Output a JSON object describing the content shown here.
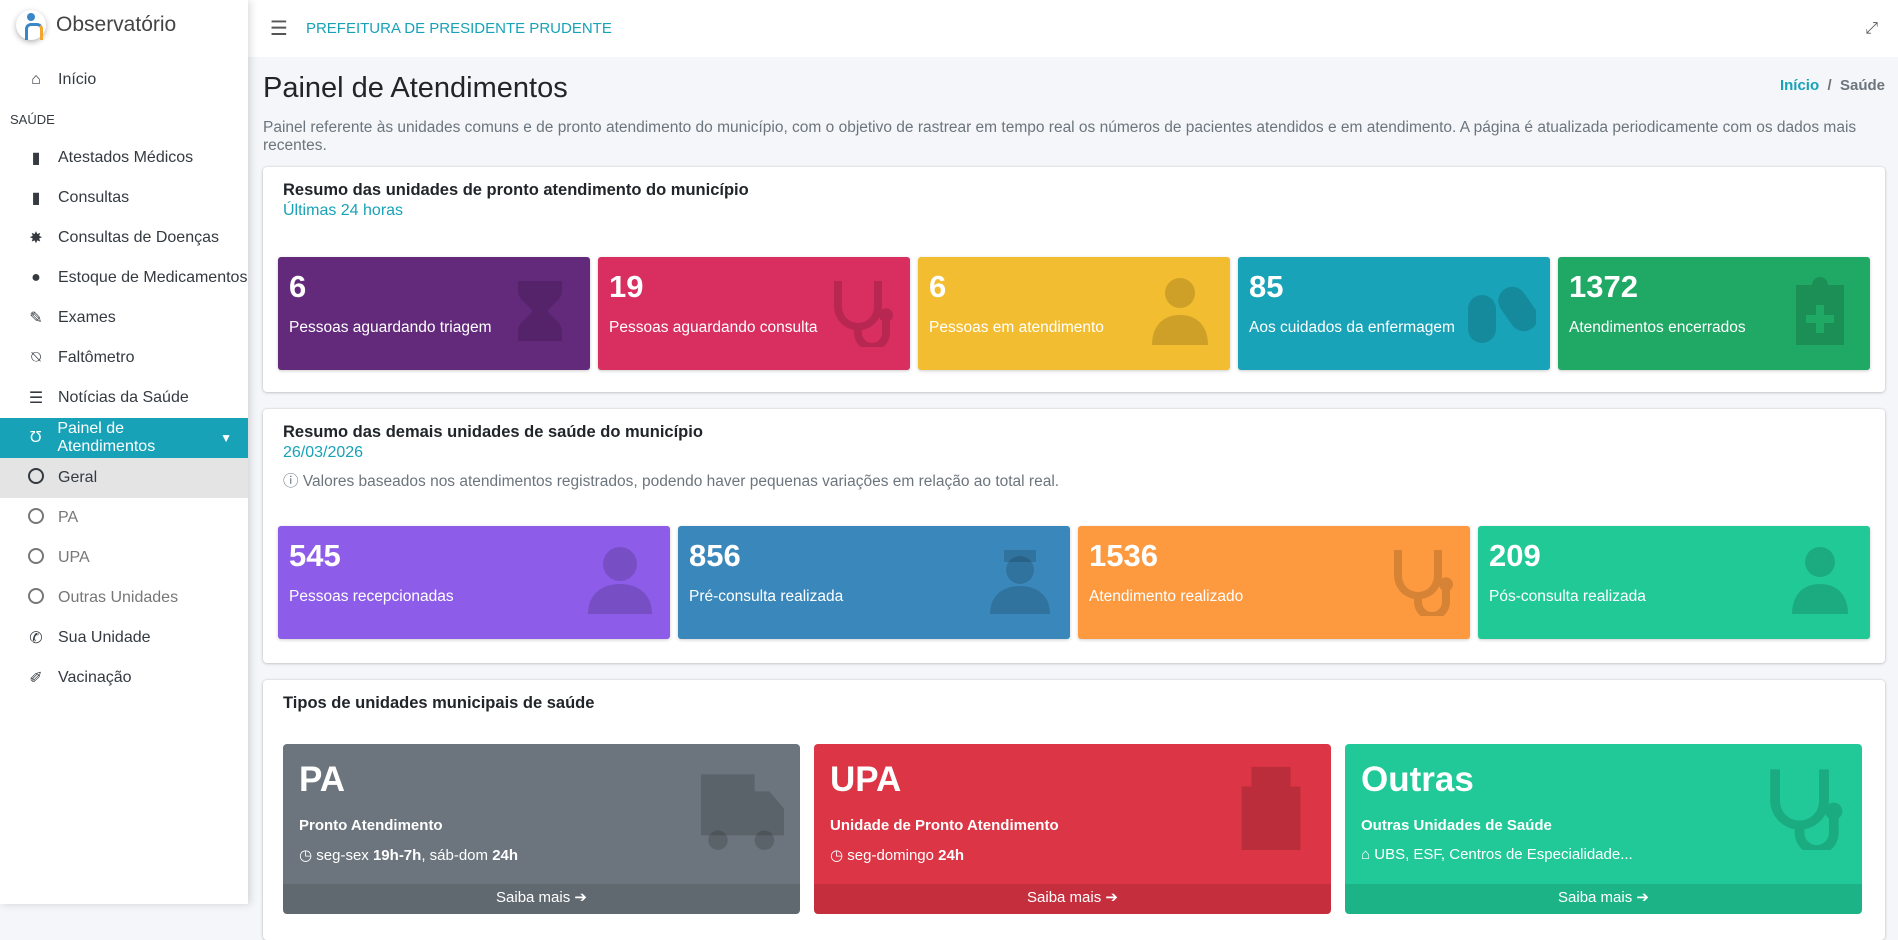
{
  "brand": "Observatório",
  "topbar": {
    "org": "PREFEITURA DE PRESIDENTE PRUDENTE"
  },
  "sidebar": {
    "home": "Início",
    "section": "SAÚDE",
    "items": [
      "Atestados Médicos",
      "Consultas",
      "Consultas de Doenças",
      "Estoque de Medicamentos",
      "Exames",
      "Faltômetro",
      "Notícias da Saúde"
    ],
    "active": "Painel de Atendimentos",
    "sub": [
      "Geral",
      "PA",
      "UPA",
      "Outras Unidades"
    ],
    "after": [
      "Sua Unidade",
      "Vacinação"
    ]
  },
  "page": {
    "title": "Painel de Atendimentos",
    "breadcrumb": [
      "Início",
      "Saúde"
    ],
    "description": "Painel referente às unidades comuns e de pronto atendimento do município, com o objetivo de rastrear em tempo real os números de pacientes atendidos e em atendimento. A página é atualizada periodicamente com os dados mais recentes."
  },
  "pronto": {
    "title": "Resumo das unidades de pronto atendimento do município",
    "subtitle": "Últimas 24 horas",
    "boxes": [
      {
        "value": "6",
        "label": "Pessoas aguardando triagem",
        "color": "#632a7c",
        "icon": "hourglass-icon"
      },
      {
        "value": "19",
        "label": "Pessoas aguardando consulta",
        "color": "#d92e60",
        "icon": "stethoscope-icon"
      },
      {
        "value": "6",
        "label": "Pessoas em atendimento",
        "color": "#f2bd30",
        "icon": "doctor-icon"
      },
      {
        "value": "85",
        "label": "Aos cuidados da enfermagem",
        "color": "#18a3b8",
        "icon": "pills-icon"
      },
      {
        "value": "1372",
        "label": "Atendimentos encerrados",
        "color": "#20a865",
        "icon": "clipboard-medical-icon"
      }
    ]
  },
  "demais": {
    "title": "Resumo das demais unidades de saúde do município",
    "date": "26/03/2026",
    "info": "Valores baseados nos atendimentos registrados, podendo haver pequenas variações em relação ao total real.",
    "boxes": [
      {
        "value": "545",
        "label": "Pessoas recepcionadas",
        "color": "#8d5ce8",
        "icon": "user-icon"
      },
      {
        "value": "856",
        "label": "Pré-consulta realizada",
        "color": "#3a88bb",
        "icon": "nurse-icon"
      },
      {
        "value": "1536",
        "label": "Atendimento realizado",
        "color": "#fd9a40",
        "icon": "stethoscope-icon"
      },
      {
        "value": "209",
        "label": "Pós-consulta realizada",
        "color": "#21c997",
        "icon": "doctor-icon"
      }
    ]
  },
  "tipos": {
    "title": "Tipos de unidades municipais de saúde",
    "more": "Saiba mais",
    "units": [
      {
        "name": "PA",
        "subtitle": "Pronto Atendimento",
        "hours_a": "seg-sex ",
        "hours_b": "19h-7h",
        "hours_c": ", sáb-dom ",
        "hours_d": "24h",
        "color": "#6c757d",
        "icon": "ambulance-icon"
      },
      {
        "name": "UPA",
        "subtitle": "Unidade de Pronto Atendimento",
        "hours_a": "seg-domingo ",
        "hours_b": "24h",
        "color": "#dc3545",
        "icon": "hospital-icon"
      },
      {
        "name": "Outras",
        "subtitle": "Outras Unidades de Saúde",
        "hours_a": "UBS, ESF, Centros de Especialidade...",
        "color": "#20c997",
        "icon": "stethoscope-icon"
      }
    ]
  }
}
